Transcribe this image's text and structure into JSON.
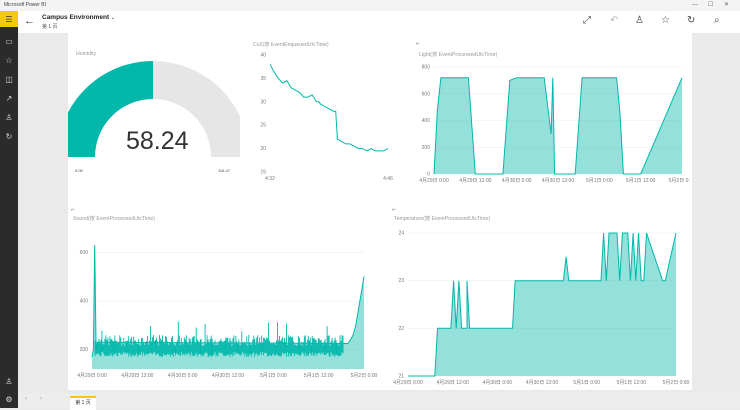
{
  "window": {
    "title": "Microsoft Power BI",
    "controls": [
      "—",
      "☐",
      "✕"
    ]
  },
  "topbar": {
    "title": "Campus Environment",
    "subtitle": "第 1 页"
  },
  "gauge": {
    "title": "Humidity",
    "value": "58.24",
    "min": "0.00",
    "max": "116.47",
    "fraction": 0.5,
    "color": "#01b8aa",
    "track_color": "#e6e6e6"
  },
  "tiles": {
    "co2": {
      "title": "Co2(按 EventEnqueuedUtcTime)"
    },
    "light": {
      "title": "Light(按 EventProcessedUtcTime)"
    },
    "sound": {
      "title": "Sound(按 EventProcessedUtcTime)"
    },
    "temp": {
      "title": "Temperature(按 EventProcessedUtcTime)"
    }
  },
  "bottombar": {
    "page_tab": "第 1 页"
  },
  "chart_data": [
    {
      "id": "co2",
      "type": "line",
      "title": "Co2(按 EventEnqueuedUtcTime)",
      "color": "#01b8aa",
      "yticks": [
        "40",
        "35",
        "30",
        "25",
        "20",
        "15"
      ],
      "ylim": [
        15,
        40
      ],
      "xticks": [
        "4:32",
        "4:46"
      ],
      "xlim": [
        0,
        14
      ],
      "x": [
        0,
        0.3,
        0.6,
        1,
        1.5,
        2,
        2.5,
        3,
        3.5,
        4,
        4.5,
        5,
        5.5,
        5.8,
        6,
        6.5,
        7,
        7.5,
        7.8,
        8,
        8.5,
        9,
        9.5,
        10,
        10.5,
        11,
        11.5,
        12,
        12.5,
        13,
        13.5,
        14
      ],
      "y": [
        38,
        37,
        36,
        35,
        34,
        34.5,
        33,
        32.5,
        32,
        31,
        31,
        31.5,
        30,
        30,
        29.5,
        29,
        28.5,
        28,
        28,
        22,
        21.5,
        21,
        21,
        20.5,
        20,
        20,
        19.5,
        20,
        19.5,
        19.5,
        19.5,
        20
      ]
    },
    {
      "id": "light",
      "type": "area",
      "title": "Light(按 EventProcessedUtcTime)",
      "color": "#01b8aa",
      "yticks": [
        "800",
        "600",
        "400",
        "200",
        "0"
      ],
      "ylim": [
        0,
        800
      ],
      "xticks": [
        "4月29日 0:00",
        "4月29日 12:00",
        "4月30日 0:00",
        "4月30日 12:00",
        "5月1日 0:00",
        "5月1日 12:00",
        "5月2日 0:00"
      ],
      "xlim": [
        0,
        72
      ],
      "x": [
        0,
        1,
        2,
        3,
        10,
        12,
        14,
        20,
        22,
        24,
        32,
        34,
        34.5,
        35,
        36,
        41,
        43,
        45,
        53,
        54,
        55,
        56,
        57,
        60,
        72
      ],
      "y": [
        0,
        480,
        720,
        720,
        720,
        0,
        0,
        0,
        700,
        720,
        720,
        300,
        720,
        0,
        0,
        0,
        720,
        720,
        720,
        450,
        0,
        0,
        0,
        0,
        720
      ]
    },
    {
      "id": "sound",
      "type": "area",
      "title": "Sound(按 EventProcessedUtcTime)",
      "color": "#01b8aa",
      "yticks": [
        "600",
        "400",
        "200"
      ],
      "ylim": [
        120,
        680
      ],
      "xticks": [
        "4月29日 0:00",
        "4月29日 12:00",
        "4月30日 0:00",
        "4月30日 12:00",
        "5月1日 0:00",
        "5月1日 12:00",
        "5月2日 0:00"
      ],
      "xlim": [
        0,
        100
      ],
      "x": [
        0,
        0.5,
        1,
        1.5,
        2,
        94,
        95,
        96,
        97,
        100
      ],
      "y": [
        170,
        200,
        630,
        200,
        230,
        225,
        240,
        260,
        300,
        500
      ]
    },
    {
      "id": "temp",
      "type": "area",
      "title": "Temperature(按 EventProcessedUtcTime)",
      "color": "#01b8aa",
      "yticks": [
        "24",
        "23",
        "22",
        "21"
      ],
      "ylim": [
        21,
        24
      ],
      "xticks": [
        "4月29日 0:00",
        "4月29日 12:00",
        "4月30日 0:00",
        "4月30日 12:00",
        "5月1日 0:00",
        "5月1日 12:00",
        "5月2日 0:00"
      ],
      "xlim": [
        0,
        100
      ],
      "x": [
        0,
        9,
        10,
        11,
        14,
        16,
        17,
        18,
        19,
        20,
        22,
        22,
        23,
        24,
        39,
        40,
        41,
        58,
        59,
        60,
        72,
        73,
        74,
        74,
        75,
        78,
        79,
        80,
        82,
        83,
        84,
        85,
        86,
        87,
        88,
        89,
        95,
        96,
        98,
        100
      ],
      "y": [
        21,
        21,
        21,
        22,
        22,
        22,
        23,
        22,
        23,
        22,
        22,
        23,
        22,
        22,
        22,
        23,
        23,
        23,
        23.5,
        23,
        23,
        24,
        23,
        23,
        24,
        24,
        23,
        24,
        24,
        23,
        24,
        23,
        24,
        23,
        23,
        24,
        23,
        23,
        23.5,
        24
      ]
    }
  ]
}
